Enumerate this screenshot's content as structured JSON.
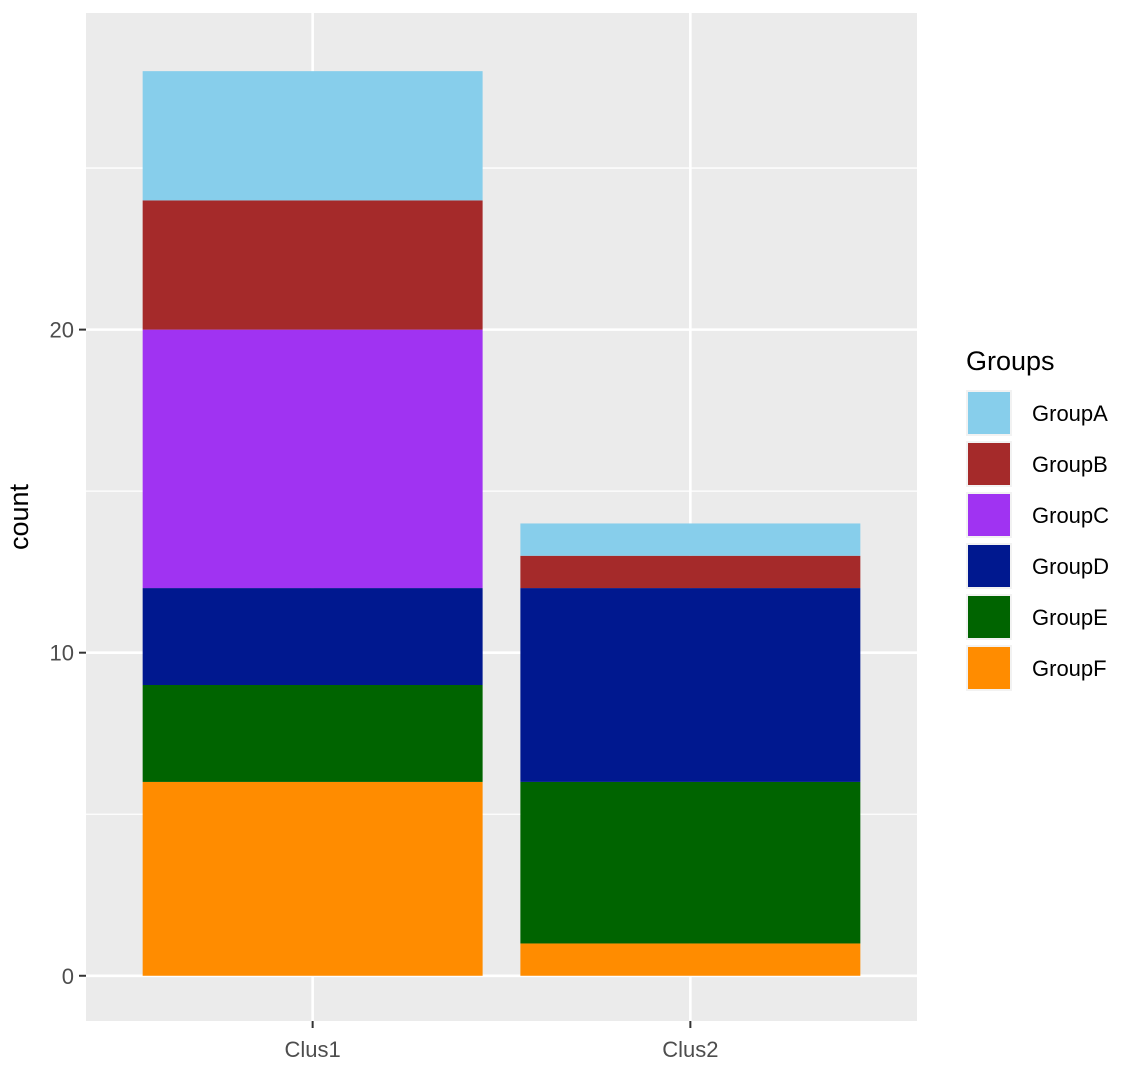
{
  "chart_data": {
    "type": "bar",
    "stacked": true,
    "title": "",
    "xlabel": "",
    "ylabel": "count",
    "categories": [
      "Clus1",
      "Clus2"
    ],
    "ylim": [
      -1.4,
      29.8
    ],
    "y_ticks": [
      0,
      10,
      20
    ],
    "y_tick_labels": [
      "0",
      "10",
      "20"
    ],
    "series": [
      {
        "name": "GroupF",
        "color": "#FF8C00",
        "values": [
          6,
          1
        ]
      },
      {
        "name": "GroupE",
        "color": "#006400",
        "values": [
          3,
          5
        ]
      },
      {
        "name": "GroupD",
        "color": "#00188F",
        "values": [
          3,
          6
        ]
      },
      {
        "name": "GroupC",
        "color": "#A033F2",
        "values": [
          8,
          0
        ]
      },
      {
        "name": "GroupB",
        "color": "#A52A2A",
        "values": [
          4,
          1
        ]
      },
      {
        "name": "GroupA",
        "color": "#87CEEB",
        "values": [
          4,
          1
        ]
      }
    ],
    "legend": {
      "title": "Groups",
      "position": "right",
      "entries": [
        "GroupA",
        "GroupB",
        "GroupC",
        "GroupD",
        "GroupE",
        "GroupF"
      ]
    },
    "grid": true,
    "panel_background": "#EBEBEB"
  }
}
